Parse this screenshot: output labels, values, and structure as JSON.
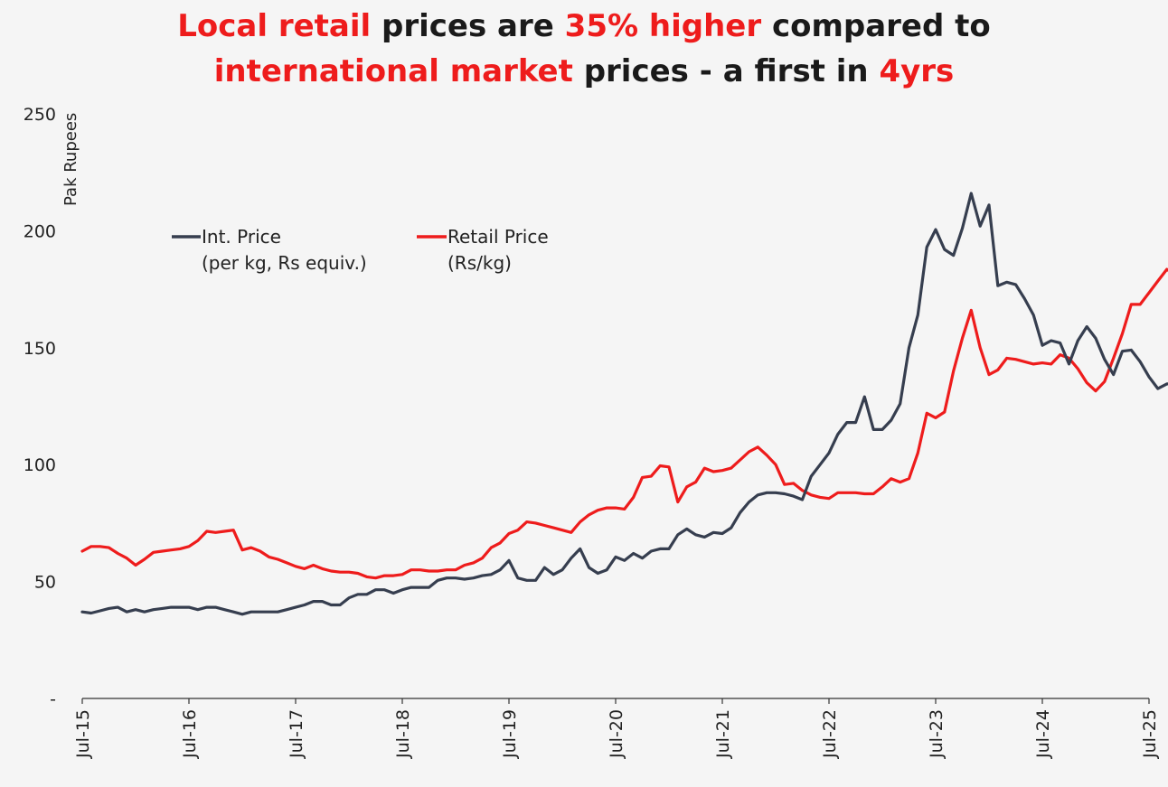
{
  "title": {
    "line1": [
      {
        "text": "Local retail",
        "highlight": true
      },
      {
        "text": " prices are ",
        "highlight": false
      },
      {
        "text": "35% higher",
        "highlight": true
      },
      {
        "text": " compared to",
        "highlight": false
      }
    ],
    "line2": [
      {
        "text": "international market",
        "highlight": true
      },
      {
        "text": " prices - a first in ",
        "highlight": false
      },
      {
        "text": "4yrs",
        "highlight": true
      }
    ]
  },
  "colors": {
    "int_price": "#363e4f",
    "retail_price": "#ee1c1c",
    "highlight": "#ee1c1c",
    "text": "#1a1a1a"
  },
  "chart_data": {
    "type": "line",
    "ylabel": "Pak Rupees",
    "ylim": [
      0,
      250
    ],
    "yticks": [
      0,
      50,
      100,
      150,
      200,
      250
    ],
    "ytick_labels": [
      "-",
      "50",
      "100",
      "150",
      "200",
      "250"
    ],
    "xlim": [
      "2015-07",
      "2025-07"
    ],
    "xtick_labels": [
      "Jul-15",
      "Jul-16",
      "Jul-17",
      "Jul-18",
      "Jul-19",
      "Jul-20",
      "Jul-21",
      "Jul-22",
      "Jul-23",
      "Jul-24",
      "Jul-25"
    ],
    "grid": false,
    "legend_position": "upper-left",
    "series": [
      {
        "name": "Int. Price",
        "name_line2": "(per kg, Rs equiv.)",
        "color": "#363e4f",
        "points": [
          [
            "2015-07",
            37
          ],
          [
            "2015-08",
            36.5
          ],
          [
            "2015-09",
            37.5
          ],
          [
            "2015-10",
            38.5
          ],
          [
            "2015-11",
            39
          ],
          [
            "2015-12",
            37
          ],
          [
            "2016-01",
            38
          ],
          [
            "2016-02",
            37
          ],
          [
            "2016-03",
            38
          ],
          [
            "2016-04",
            38.5
          ],
          [
            "2016-05",
            39
          ],
          [
            "2016-06",
            39
          ],
          [
            "2016-07",
            39
          ],
          [
            "2016-08",
            38
          ],
          [
            "2016-09",
            39
          ],
          [
            "2016-10",
            39
          ],
          [
            "2016-11",
            38
          ],
          [
            "2016-12",
            37
          ],
          [
            "2017-01",
            36
          ],
          [
            "2017-02",
            37
          ],
          [
            "2017-03",
            37
          ],
          [
            "2017-04",
            37
          ],
          [
            "2017-05",
            37
          ],
          [
            "2017-06",
            38
          ],
          [
            "2017-07",
            39
          ],
          [
            "2017-08",
            40
          ],
          [
            "2017-09",
            41.5
          ],
          [
            "2017-10",
            41.5
          ],
          [
            "2017-11",
            40
          ],
          [
            "2017-12",
            40
          ],
          [
            "2018-01",
            43
          ],
          [
            "2018-02",
            44.5
          ],
          [
            "2018-03",
            44.5
          ],
          [
            "2018-04",
            46.5
          ],
          [
            "2018-05",
            46.5
          ],
          [
            "2018-06",
            45
          ],
          [
            "2018-07",
            46.5
          ],
          [
            "2018-08",
            47.5
          ],
          [
            "2018-09",
            47.5
          ],
          [
            "2018-10",
            47.5
          ],
          [
            "2018-11",
            50.5
          ],
          [
            "2018-12",
            51.5
          ],
          [
            "2019-01",
            51.5
          ],
          [
            "2019-02",
            51
          ],
          [
            "2019-03",
            51.5
          ],
          [
            "2019-04",
            52.5
          ],
          [
            "2019-05",
            53
          ],
          [
            "2019-06",
            55
          ],
          [
            "2019-07",
            59
          ],
          [
            "2019-08",
            51.5
          ],
          [
            "2019-09",
            50.5
          ],
          [
            "2019-10",
            50.5
          ],
          [
            "2019-11",
            56
          ],
          [
            "2019-12",
            53
          ],
          [
            "2020-01",
            55
          ],
          [
            "2020-02",
            60
          ],
          [
            "2020-03",
            64
          ],
          [
            "2020-04",
            56
          ],
          [
            "2020-05",
            53.5
          ],
          [
            "2020-06",
            55
          ],
          [
            "2020-07",
            60.5
          ],
          [
            "2020-08",
            59
          ],
          [
            "2020-09",
            62
          ],
          [
            "2020-10",
            60
          ],
          [
            "2020-11",
            63
          ],
          [
            "2020-12",
            64
          ],
          [
            "2021-01",
            64
          ],
          [
            "2021-02",
            70
          ],
          [
            "2021-03",
            72.5
          ],
          [
            "2021-04",
            70
          ],
          [
            "2021-05",
            69
          ],
          [
            "2021-06",
            71
          ],
          [
            "2021-07",
            70.5
          ],
          [
            "2021-08",
            73
          ],
          [
            "2021-09",
            79.5
          ],
          [
            "2021-10",
            84
          ],
          [
            "2021-11",
            87
          ],
          [
            "2021-12",
            88
          ],
          [
            "2022-01",
            88
          ],
          [
            "2022-02",
            87.5
          ],
          [
            "2022-03",
            86.5
          ],
          [
            "2022-04",
            85
          ],
          [
            "2022-05",
            95
          ],
          [
            "2022-06",
            100
          ],
          [
            "2022-07",
            105
          ],
          [
            "2022-08",
            113
          ],
          [
            "2022-09",
            118
          ],
          [
            "2022-10",
            118
          ],
          [
            "2022-11",
            129
          ],
          [
            "2022-12",
            115
          ],
          [
            "2023-01",
            115
          ],
          [
            "2023-02",
            119
          ],
          [
            "2023-03",
            126
          ],
          [
            "2023-04",
            150
          ],
          [
            "2023-05",
            164
          ],
          [
            "2023-06",
            193
          ],
          [
            "2023-07",
            200.5
          ],
          [
            "2023-08",
            192
          ],
          [
            "2023-09",
            189.5
          ],
          [
            "2023-10",
            201
          ],
          [
            "2023-11",
            216
          ],
          [
            "2023-12",
            202
          ],
          [
            "2024-01",
            211
          ],
          [
            "2024-02",
            176.5
          ],
          [
            "2024-03",
            178
          ],
          [
            "2024-04",
            177
          ],
          [
            "2024-05",
            171
          ],
          [
            "2024-06",
            164
          ],
          [
            "2024-07",
            151
          ],
          [
            "2024-08",
            153
          ],
          [
            "2024-09",
            152
          ],
          [
            "2024-10",
            143
          ],
          [
            "2024-11",
            153
          ],
          [
            "2024-12",
            159
          ],
          [
            "2025-01",
            154
          ],
          [
            "2025-02",
            145
          ],
          [
            "2025-03",
            138.5
          ],
          [
            "2025-04",
            148.5
          ],
          [
            "2025-05",
            149
          ],
          [
            "2025-06",
            144
          ],
          [
            "2025-07",
            137.5
          ],
          [
            "2025-08",
            132.5
          ],
          [
            "2025-09",
            134.5
          ],
          [
            "2025-10",
            134.5
          ]
        ]
      },
      {
        "name": "Retail Price",
        "name_line2": "(Rs/kg)",
        "color": "#ee1c1c",
        "points": [
          [
            "2015-07",
            63
          ],
          [
            "2015-08",
            65
          ],
          [
            "2015-09",
            65
          ],
          [
            "2015-10",
            64.5
          ],
          [
            "2015-11",
            62
          ],
          [
            "2015-12",
            60
          ],
          [
            "2016-01",
            57
          ],
          [
            "2016-02",
            59.5
          ],
          [
            "2016-03",
            62.5
          ],
          [
            "2016-04",
            63
          ],
          [
            "2016-05",
            63.5
          ],
          [
            "2016-06",
            64
          ],
          [
            "2016-07",
            65
          ],
          [
            "2016-08",
            67.5
          ],
          [
            "2016-09",
            71.5
          ],
          [
            "2016-10",
            71
          ],
          [
            "2016-11",
            71.5
          ],
          [
            "2016-12",
            72
          ],
          [
            "2017-01",
            63.5
          ],
          [
            "2017-02",
            64.5
          ],
          [
            "2017-03",
            63
          ],
          [
            "2017-04",
            60.5
          ],
          [
            "2017-05",
            59.5
          ],
          [
            "2017-06",
            58
          ],
          [
            "2017-07",
            56.5
          ],
          [
            "2017-08",
            55.5
          ],
          [
            "2017-09",
            57
          ],
          [
            "2017-10",
            55.5
          ],
          [
            "2017-11",
            54.5
          ],
          [
            "2017-12",
            54
          ],
          [
            "2018-01",
            54
          ],
          [
            "2018-02",
            53.5
          ],
          [
            "2018-03",
            52
          ],
          [
            "2018-04",
            51.5
          ],
          [
            "2018-05",
            52.5
          ],
          [
            "2018-06",
            52.5
          ],
          [
            "2018-07",
            53
          ],
          [
            "2018-08",
            55
          ],
          [
            "2018-09",
            55
          ],
          [
            "2018-10",
            54.5
          ],
          [
            "2018-11",
            54.5
          ],
          [
            "2018-12",
            55
          ],
          [
            "2019-01",
            55
          ],
          [
            "2019-02",
            57
          ],
          [
            "2019-03",
            58
          ],
          [
            "2019-04",
            60
          ],
          [
            "2019-05",
            64.5
          ],
          [
            "2019-06",
            66.5
          ],
          [
            "2019-07",
            70.5
          ],
          [
            "2019-08",
            72
          ],
          [
            "2019-09",
            75.5
          ],
          [
            "2019-10",
            75
          ],
          [
            "2019-11",
            74
          ],
          [
            "2019-12",
            73
          ],
          [
            "2020-01",
            72
          ],
          [
            "2020-02",
            71
          ],
          [
            "2020-03",
            75.5
          ],
          [
            "2020-04",
            78.5
          ],
          [
            "2020-05",
            80.5
          ],
          [
            "2020-06",
            81.5
          ],
          [
            "2020-07",
            81.5
          ],
          [
            "2020-08",
            81
          ],
          [
            "2020-09",
            86
          ],
          [
            "2020-10",
            94.5
          ],
          [
            "2020-11",
            95
          ],
          [
            "2020-12",
            99.5
          ],
          [
            "2021-01",
            99
          ],
          [
            "2021-02",
            84
          ],
          [
            "2021-03",
            90.5
          ],
          [
            "2021-04",
            92.5
          ],
          [
            "2021-05",
            98.5
          ],
          [
            "2021-06",
            97
          ],
          [
            "2021-07",
            97.5
          ],
          [
            "2021-08",
            98.5
          ],
          [
            "2021-09",
            102
          ],
          [
            "2021-10",
            105.5
          ],
          [
            "2021-11",
            107.5
          ],
          [
            "2021-12",
            104
          ],
          [
            "2022-01",
            100
          ],
          [
            "2022-02",
            91.5
          ],
          [
            "2022-03",
            92
          ],
          [
            "2022-04",
            89
          ],
          [
            "2022-05",
            87
          ],
          [
            "2022-06",
            86
          ],
          [
            "2022-07",
            85.5
          ],
          [
            "2022-08",
            88
          ],
          [
            "2022-09",
            88
          ],
          [
            "2022-10",
            88
          ],
          [
            "2022-11",
            87.5
          ],
          [
            "2022-12",
            87.5
          ],
          [
            "2023-01",
            90.5
          ],
          [
            "2023-02",
            94
          ],
          [
            "2023-03",
            92.5
          ],
          [
            "2023-04",
            94
          ],
          [
            "2023-05",
            105
          ],
          [
            "2023-06",
            122
          ],
          [
            "2023-07",
            120
          ],
          [
            "2023-08",
            122.5
          ],
          [
            "2023-09",
            140
          ],
          [
            "2023-10",
            154
          ],
          [
            "2023-11",
            166
          ],
          [
            "2023-12",
            150
          ],
          [
            "2024-01",
            138.5
          ],
          [
            "2024-02",
            140.5
          ],
          [
            "2024-03",
            145.5
          ],
          [
            "2024-04",
            145
          ],
          [
            "2024-05",
            144
          ],
          [
            "2024-06",
            143
          ],
          [
            "2024-07",
            143.5
          ],
          [
            "2024-08",
            143
          ],
          [
            "2024-09",
            147
          ],
          [
            "2024-10",
            145.5
          ],
          [
            "2024-11",
            141
          ],
          [
            "2024-12",
            135
          ],
          [
            "2025-01",
            131.5
          ],
          [
            "2025-02",
            135.5
          ],
          [
            "2025-03",
            145.5
          ],
          [
            "2025-04",
            156
          ],
          [
            "2025-05",
            168.5
          ],
          [
            "2025-06",
            168.5
          ],
          [
            "2025-07",
            173.5
          ],
          [
            "2025-08",
            178.5
          ],
          [
            "2025-09",
            183.5
          ],
          [
            "2025-10",
            181
          ]
        ]
      }
    ]
  }
}
